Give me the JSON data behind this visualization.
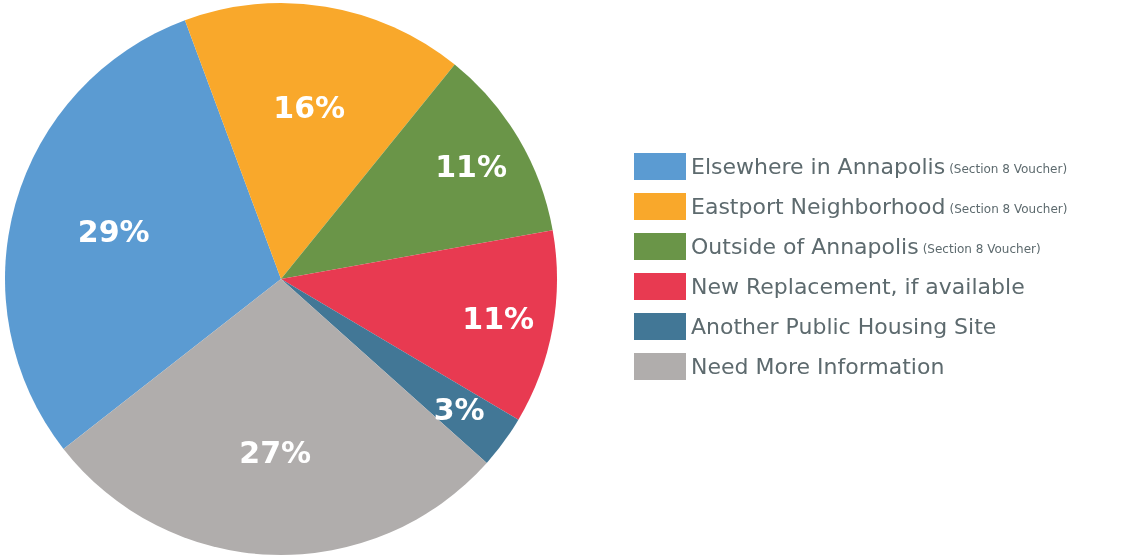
{
  "chart_data": {
    "type": "pie",
    "categories": [
      "Elsewhere in Annapolis (Section 8 Voucher)",
      "Eastport Neighborhood (Section 8 Voucher)",
      "Outside of Annapolis (Section 8 Voucher)",
      "New Replacement, if available",
      "Another Public Housing Site",
      "Need More Information"
    ],
    "values": [
      29,
      16,
      11,
      11,
      3,
      27
    ],
    "colors": [
      "#5b9bd2",
      "#f9a82b",
      "#6a9548",
      "#e83a51",
      "#427796",
      "#b0adac"
    ],
    "value_labels": [
      "29%",
      "16%",
      "11%",
      "11%",
      "3%",
      "27%"
    ],
    "legend": "right"
  }
}
